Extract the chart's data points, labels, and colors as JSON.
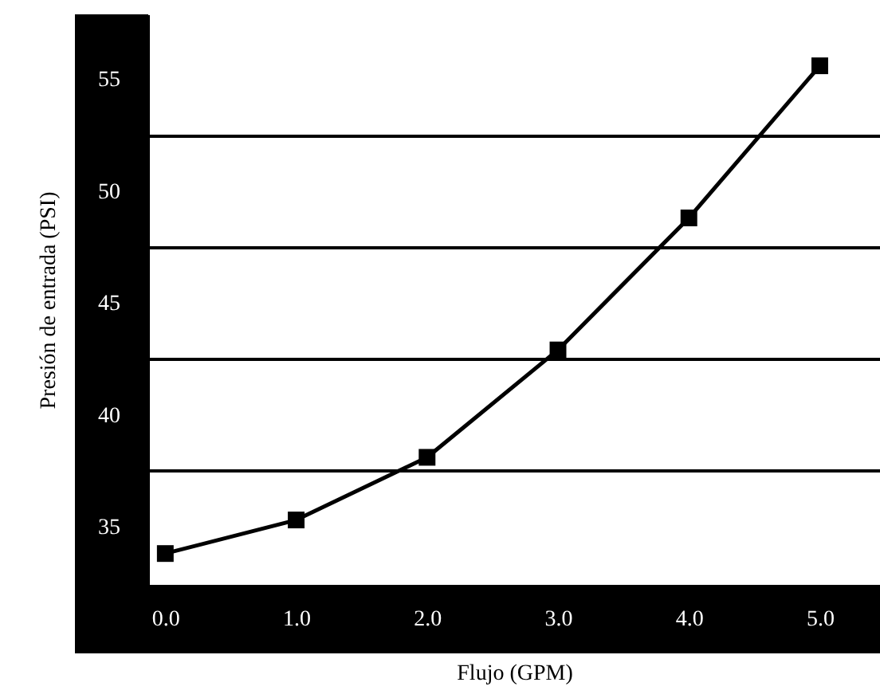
{
  "chart_data": {
    "type": "line",
    "xlabel": "Flujo (GPM)",
    "ylabel": "Presión de entrada (PSI)",
    "x": [
      0,
      1,
      2,
      3,
      4,
      5
    ],
    "series": [
      {
        "color": "#000000",
        "values": [
          33.8,
          35.3,
          38.1,
          42.9,
          48.8,
          55.6
        ]
      }
    ],
    "xlim": [
      -0.13,
      5.46
    ],
    "ylim": [
      32.4,
      57.9
    ],
    "xticks": [
      {
        "value": 0,
        "label": "0.0"
      },
      {
        "value": 1,
        "label": "1.0"
      },
      {
        "value": 2,
        "label": "2.0"
      },
      {
        "value": 3,
        "label": "3.0"
      },
      {
        "value": 4,
        "label": "4.0"
      },
      {
        "value": 5,
        "label": "5.0"
      }
    ],
    "yticks": [
      35,
      {
        "value": 37.5,
        "label": null
      },
      40,
      {
        "value": 42.5,
        "label": null
      },
      45,
      {
        "value": 47.5,
        "label": null
      },
      50,
      {
        "value": 52.5,
        "label": null
      },
      55
    ],
    "grid": "y",
    "marker": "square",
    "line_style": "solid"
  }
}
